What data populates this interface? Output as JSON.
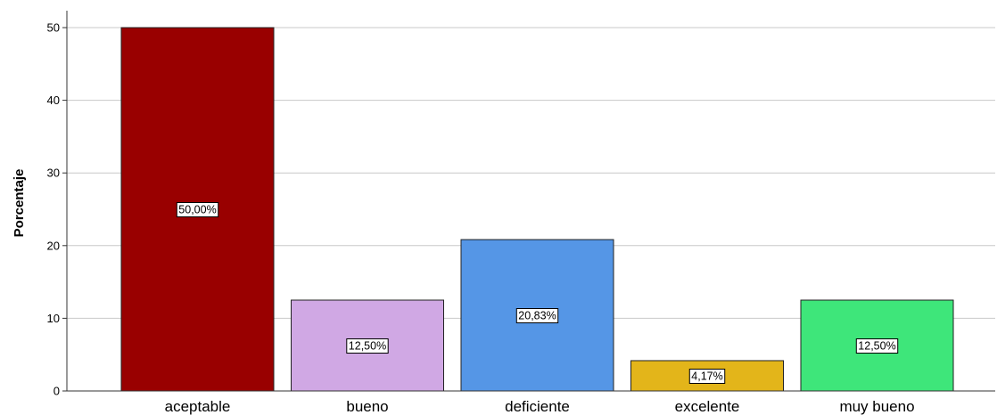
{
  "chart_data": {
    "type": "bar",
    "title": "",
    "xlabel": "",
    "ylabel": "Porcentaje",
    "ylim": [
      0,
      52
    ],
    "yticks": [
      0,
      10,
      20,
      30,
      40,
      50
    ],
    "grid": true,
    "categories": [
      "aceptable",
      "bueno",
      "deficiente",
      "excelente",
      "muy bueno"
    ],
    "values": [
      50.0,
      12.5,
      20.83,
      4.17,
      12.5
    ],
    "data_labels": [
      "50,00%",
      "12,50%",
      "20,83%",
      "4,17%",
      "12,50%"
    ],
    "colors": [
      "#990000",
      "#d0a8e4",
      "#5596e6",
      "#e3b51a",
      "#3ee67a"
    ]
  }
}
